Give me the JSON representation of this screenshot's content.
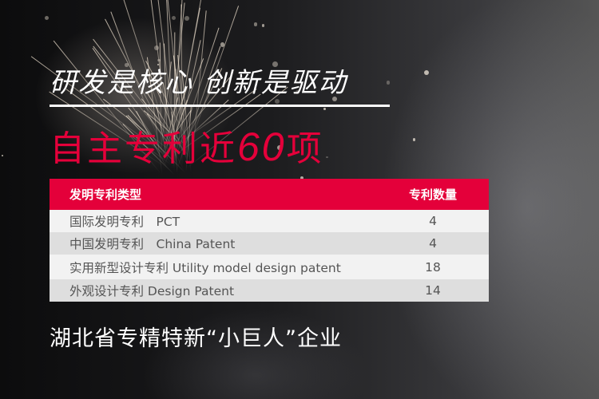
{
  "slogan": "研发是核心 创新是驱动",
  "headline": {
    "prefix": "自主专利近",
    "number": "60",
    "suffix": "项"
  },
  "table": {
    "headers": [
      "发明专利类型",
      "专利数量"
    ],
    "rows": [
      {
        "type": "国际发明专利　PCT",
        "count": "4"
      },
      {
        "type": "中国发明专利　China Patent",
        "count": "4"
      },
      {
        "type": "实用新型设计专利  Utility model design patent",
        "count": "18"
      },
      {
        "type": "外观设计专利  Design Patent",
        "count": "14"
      }
    ]
  },
  "tagline": "湖北省专精特新“小巨人”企业",
  "colors": {
    "accent": "#e4003a"
  }
}
